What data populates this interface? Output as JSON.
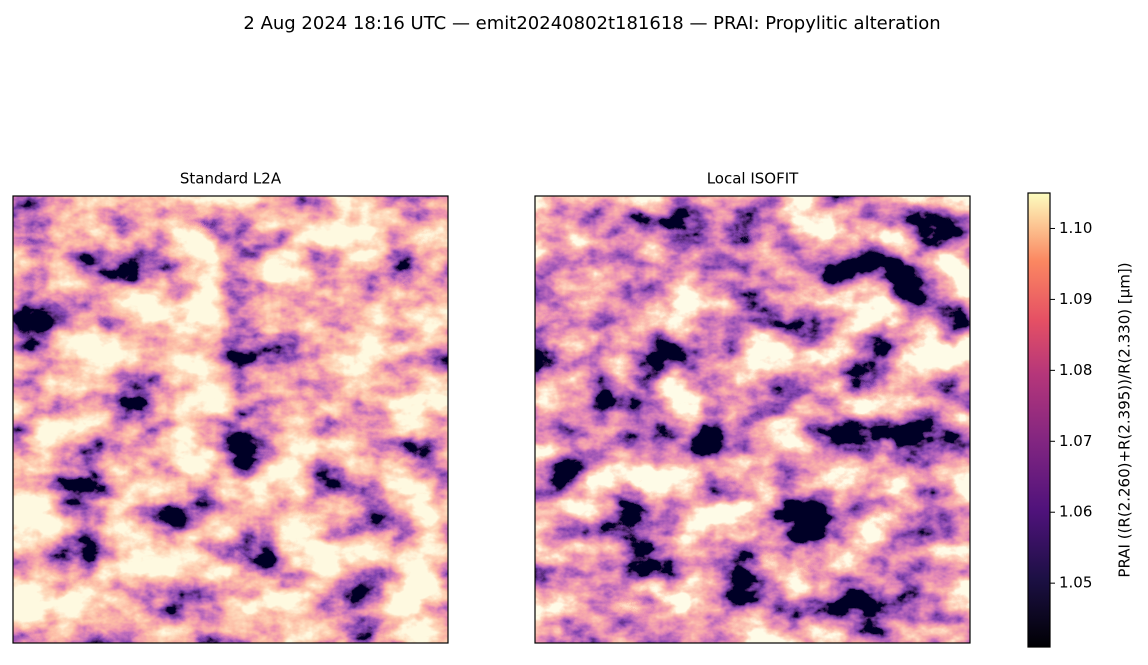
{
  "chart_data": {
    "type": "heatmap",
    "title": "2 Aug 2024 18:16 UTC — emit20240802t181618 — PRAI: Propylitic alteration",
    "panels": [
      {
        "title": "Standard L2A"
      },
      {
        "title": "Local ISOFIT"
      }
    ],
    "colorbar": {
      "label": "PRAI  ((R(2.260)+R(2.395))/R(2.330)  [µm])",
      "colormap": "magma",
      "clim": [
        1.041,
        1.105
      ],
      "ticks": [
        {
          "value": 1.05,
          "label": "1.05"
        },
        {
          "value": 1.06,
          "label": "1.06"
        },
        {
          "value": 1.07,
          "label": "1.07"
        },
        {
          "value": 1.08,
          "label": "1.08"
        },
        {
          "value": 1.09,
          "label": "1.09"
        },
        {
          "value": 1.1,
          "label": "1.10"
        }
      ]
    }
  }
}
